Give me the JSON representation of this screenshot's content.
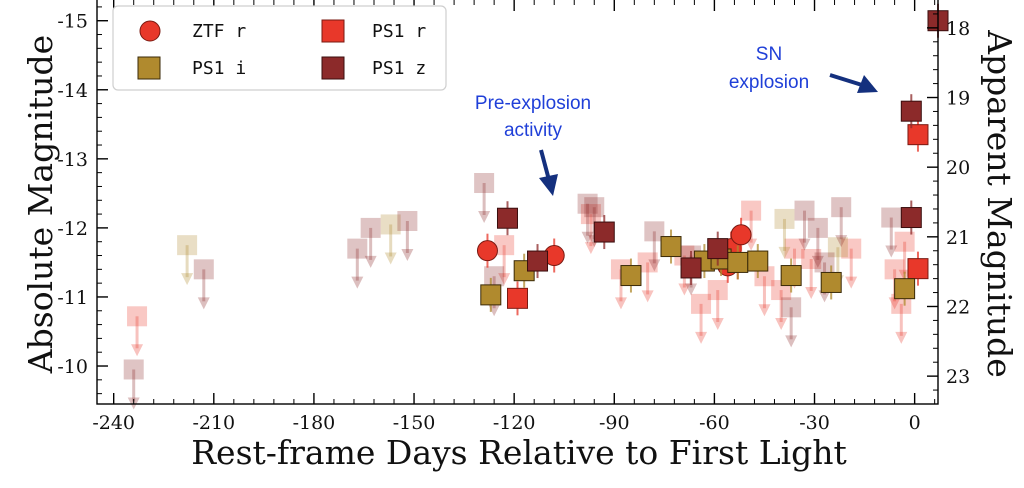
{
  "chart_data": {
    "type": "scatter",
    "xlabel": "Rest-frame Days Relative to First Light",
    "ylabel": "Absolute Magnitude",
    "ylabel_right": "Apparent Magnitude",
    "xlim": [
      -245,
      7
    ],
    "ylim": [
      -9.45,
      -15.3
    ],
    "ylim_right": [
      23.4,
      17.6
    ],
    "y_inverted": true,
    "grid": false,
    "legend_position": "top-left",
    "x_ticks": [
      -240,
      -210,
      -180,
      -150,
      -120,
      -90,
      -60,
      -30,
      0
    ],
    "x_tick_labels": [
      "-240",
      "-210",
      "-180",
      "-150",
      "-120",
      "-90",
      "-60",
      "-30",
      "0"
    ],
    "y_ticks": [
      -10,
      -11,
      -12,
      -13,
      -14,
      -15
    ],
    "y_tick_labels": [
      "-10",
      "-11",
      "-12",
      "-13",
      "-14",
      "-15"
    ],
    "y_right_ticks": [
      18,
      19,
      20,
      21,
      22,
      23
    ],
    "y_right_tick_labels": [
      "18",
      "19",
      "20",
      "21",
      "22",
      "23"
    ],
    "series": [
      {
        "name": "ZTF r",
        "marker": "circle",
        "color": "#e8382a",
        "detections": [
          [
            -128,
            -11.67
          ],
          [
            -108,
            -11.6
          ],
          [
            -57,
            -11.6
          ],
          [
            -56,
            -11.45
          ],
          [
            -55,
            -11.7
          ],
          [
            -53,
            -11.5
          ],
          [
            -52,
            -11.9
          ]
        ],
        "upper_limits": []
      },
      {
        "name": "PS1 r",
        "marker": "square",
        "color": "#e8382a",
        "detections": [
          [
            -119,
            -10.98
          ],
          [
            1,
            -11.41
          ],
          [
            1,
            -13.35
          ]
        ],
        "upper_limits": [
          [
            -233,
            -10.72
          ],
          [
            -123,
            -11.75
          ],
          [
            -97,
            -12.2
          ],
          [
            -88,
            -11.4
          ],
          [
            -80,
            -11.5
          ],
          [
            -69,
            -11.6
          ],
          [
            -64,
            -10.9
          ],
          [
            -59,
            -11.1
          ],
          [
            -49,
            -12.25
          ],
          [
            -45,
            -11.3
          ],
          [
            -40,
            -11.1
          ],
          [
            -36,
            -11.7
          ],
          [
            -31,
            -11.55
          ],
          [
            -19,
            -11.7
          ],
          [
            -6,
            -11.4
          ],
          [
            -4,
            -10.9
          ],
          [
            -3,
            -11.8
          ]
        ]
      },
      {
        "name": "PS1 i",
        "marker": "square",
        "color": "#b08a2e",
        "detections": [
          [
            -127,
            -11.03
          ],
          [
            -117,
            -11.38
          ],
          [
            -85,
            -11.31
          ],
          [
            -73,
            -11.73
          ],
          [
            -63,
            -11.52
          ],
          [
            -58,
            -11.55
          ],
          [
            -53,
            -11.5
          ],
          [
            -47,
            -11.52
          ],
          [
            -37,
            -11.31
          ],
          [
            -25,
            -11.21
          ],
          [
            -3,
            -11.12
          ]
        ],
        "upper_limits": [
          [
            -218,
            -11.75
          ],
          [
            -157,
            -12.05
          ],
          [
            -39,
            -12.13
          ],
          [
            -23,
            -11.72
          ]
        ]
      },
      {
        "name": "PS1 z",
        "marker": "square",
        "color": "#8c2a2a",
        "detections": [
          [
            -122,
            -12.14
          ],
          [
            -113,
            -11.52
          ],
          [
            -93,
            -11.94
          ],
          [
            -67,
            -11.42
          ],
          [
            -59,
            -11.7
          ],
          [
            -1,
            -12.15
          ],
          [
            -1,
            -13.69
          ],
          [
            7,
            -15.0
          ]
        ],
        "upper_limits": [
          [
            -234,
            -9.95
          ],
          [
            -213,
            -11.4
          ],
          [
            -167,
            -11.7
          ],
          [
            -163,
            -12.0
          ],
          [
            -152,
            -12.1
          ],
          [
            -129,
            -12.65
          ],
          [
            -126,
            -11.3
          ],
          [
            -98,
            -12.35
          ],
          [
            -96,
            -12.3
          ],
          [
            -78,
            -11.95
          ],
          [
            -67,
            -11.6
          ],
          [
            -37,
            -10.85
          ],
          [
            -33,
            -12.25
          ],
          [
            -29,
            -12.0
          ],
          [
            -27,
            -11.5
          ],
          [
            -22,
            -12.3
          ],
          [
            -7,
            -12.15
          ]
        ]
      }
    ],
    "annotations": [
      {
        "text_lines": [
          "Pre-explosion",
          "activity"
        ]
      },
      {
        "text_lines": [
          "SN",
          "explosion"
        ]
      }
    ]
  }
}
